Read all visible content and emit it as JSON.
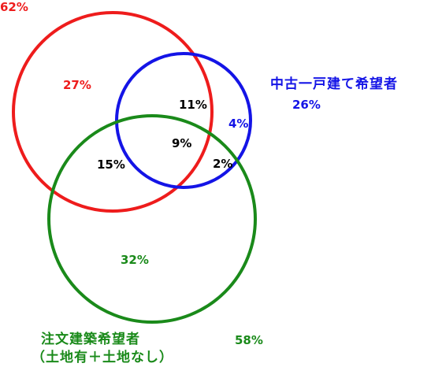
{
  "circles": {
    "red": {
      "color": "#ee1c1c",
      "total": "62%"
    },
    "blue": {
      "color": "#1414e6",
      "name": "中古一戸建て希望者",
      "total": "26%"
    },
    "green": {
      "color": "#1a8a1a",
      "name": "注文建築希望者",
      "sub": "（土地有＋土地なし）",
      "total": "58%"
    }
  },
  "regions": {
    "red_only": "27%",
    "red_blue": "11%",
    "blue_only": "4%",
    "all_three": "9%",
    "red_green": "15%",
    "blue_green": "2%",
    "green_only": "32%"
  }
}
